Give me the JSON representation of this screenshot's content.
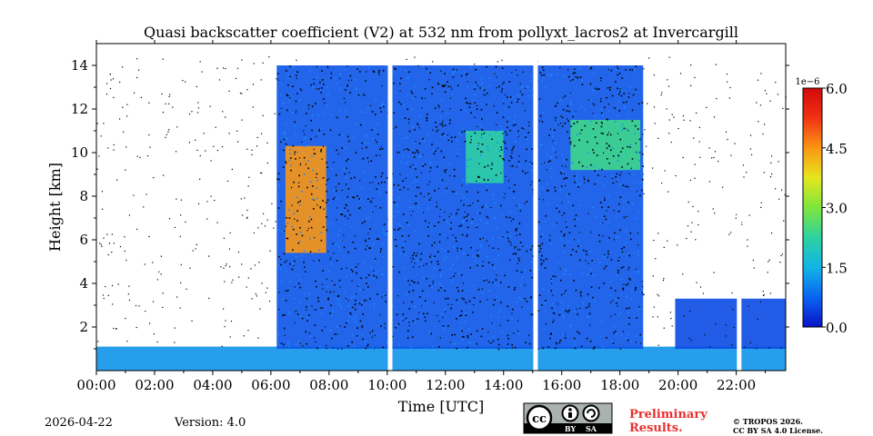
{
  "chart_data": {
    "type": "heatmap",
    "title": "Quasi backscatter coefficient (V2) at 532 nm from pollyxt_lacros2 at Invercargill",
    "xlabel": "Time [UTC]",
    "ylabel": "Height [km]",
    "xlim_hours": [
      0,
      23.7
    ],
    "ylim_km": [
      0,
      15
    ],
    "x_tick_hours": [
      0,
      2,
      4,
      6,
      8,
      10,
      12,
      14,
      16,
      18,
      20,
      22
    ],
    "x_tick_labels": [
      "00:00",
      "02:00",
      "04:00",
      "06:00",
      "08:00",
      "10:00",
      "12:00",
      "14:00",
      "16:00",
      "18:00",
      "20:00",
      "22:00"
    ],
    "y_ticks": [
      2,
      4,
      6,
      8,
      10,
      12,
      14
    ],
    "y_tick_labels": [
      "2",
      "4",
      "6",
      "8",
      "10",
      "12",
      "14"
    ],
    "colorbar": {
      "min": 0.0,
      "max": 6.0,
      "ticks": [
        0.0,
        1.5,
        3.0,
        4.5,
        6.0
      ],
      "tick_labels": [
        "0.0",
        "1.5",
        "3.0",
        "4.5",
        "6.0"
      ],
      "scale_label": "1e−6",
      "colormap_stops": [
        "#0a14c8",
        "#0a64f0",
        "#12b4e6",
        "#2ed2a0",
        "#7ee63c",
        "#e6e61e",
        "#fa9614",
        "#f03214",
        "#d20a0a"
      ]
    },
    "data_gaps_hours": [
      10.1,
      15.1,
      22.1
    ],
    "regions": [
      {
        "kind": "boundary-layer",
        "t_start": 0.0,
        "t_end": 23.7,
        "h_bottom": 0.0,
        "h_top": 1.1,
        "level": 1.2
      },
      {
        "kind": "cloud-deck",
        "t_start": 6.2,
        "t_end": 18.8,
        "h_bottom": 1.0,
        "h_top": 14.0,
        "level": 0.6
      },
      {
        "kind": "cirrus-plume",
        "t_start": 6.5,
        "t_end": 7.9,
        "h_bottom": 5.4,
        "h_top": 10.3,
        "level": 4.5
      },
      {
        "kind": "cirrus-patch",
        "t_start": 12.7,
        "t_end": 14.0,
        "h_bottom": 8.6,
        "h_top": 11.0,
        "level": 2.2
      },
      {
        "kind": "cirrus-patch",
        "t_start": 16.3,
        "t_end": 18.7,
        "h_bottom": 9.2,
        "h_top": 11.5,
        "level": 2.4
      },
      {
        "kind": "lower-aerosol",
        "t_start": 19.9,
        "t_end": 23.7,
        "h_bottom": 1.0,
        "h_top": 3.3,
        "level": 0.5
      }
    ]
  },
  "footer": {
    "date": "2026-04-22",
    "version": "Version: 4.0",
    "preliminary": "Preliminary Results.",
    "copyright_line1": "© TROPOS 2026.",
    "copyright_line2": "CC BY SA 4.0 License.",
    "license_badge": {
      "cc": "cc",
      "by": "BY",
      "sa": "SA"
    }
  }
}
